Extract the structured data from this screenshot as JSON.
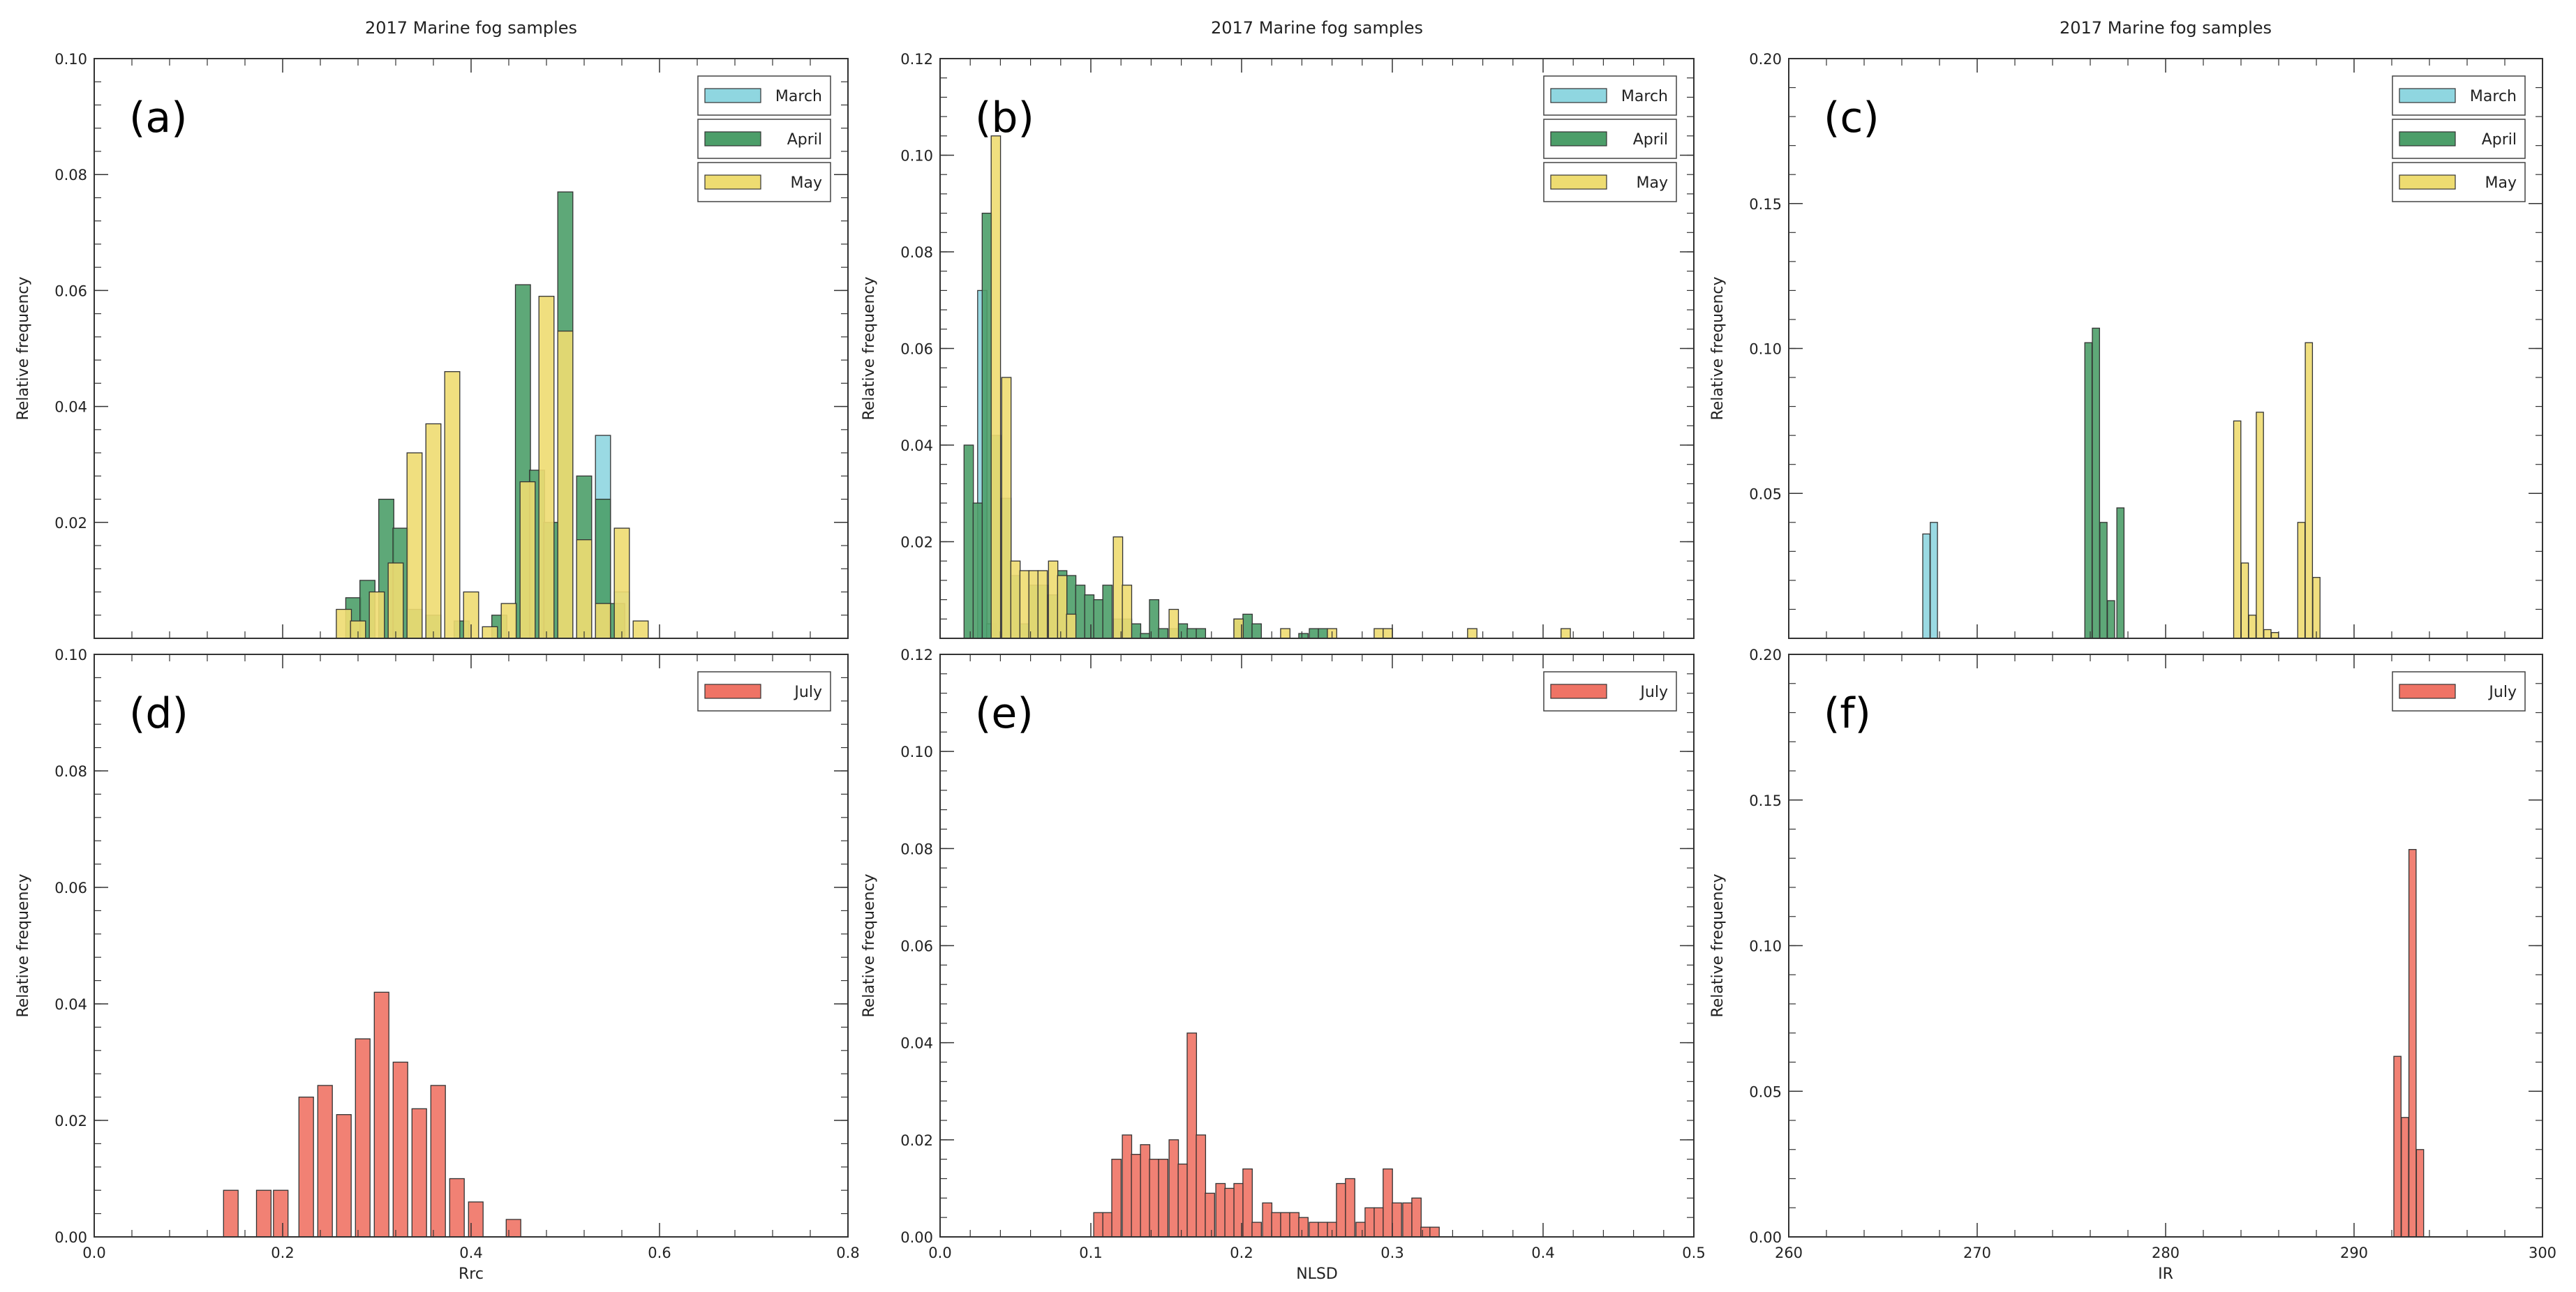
{
  "colors": {
    "March": "#8fd6e0",
    "April": "#4c9e69",
    "May": "#eedc71",
    "July": "#ef7365",
    "edge": "#333333"
  },
  "chart_data": [
    {
      "type": "bar",
      "panel": "(a)",
      "title": "2017 Marine fog samples",
      "xlabel": "",
      "ylabel": "Relative frequency",
      "xlim": [
        0,
        0.8
      ],
      "ylim": [
        0,
        0.1
      ],
      "bin_width": 0.016,
      "xticks": [],
      "yticks": [
        "0.02",
        "0.04",
        "0.06",
        "0.08",
        "0.10"
      ],
      "legend": [
        "March",
        "April",
        "May"
      ],
      "series": [
        {
          "name": "March",
          "x": [
            0.54,
            0.56
          ],
          "values": [
            0.035,
            0.008
          ]
        },
        {
          "name": "April",
          "x": [
            0.275,
            0.29,
            0.31,
            0.325,
            0.34,
            0.36,
            0.39,
            0.43,
            0.455,
            0.47,
            0.485,
            0.5,
            0.52,
            0.54,
            0.555
          ],
          "values": [
            0.007,
            0.01,
            0.024,
            0.019,
            0.005,
            0.004,
            0.003,
            0.004,
            0.061,
            0.029,
            0.02,
            0.077,
            0.028,
            0.024,
            0.006
          ]
        },
        {
          "name": "May",
          "x": [
            0.265,
            0.28,
            0.3,
            0.32,
            0.34,
            0.36,
            0.38,
            0.4,
            0.42,
            0.44,
            0.46,
            0.48,
            0.5,
            0.52,
            0.54,
            0.56,
            0.58,
            0.6
          ],
          "values": [
            0.005,
            0.003,
            0.008,
            0.013,
            0.032,
            0.037,
            0.046,
            0.008,
            0.002,
            0.006,
            0.027,
            0.059,
            0.053,
            0.017,
            0.006,
            0.019,
            0.003,
            0
          ]
        }
      ]
    },
    {
      "type": "bar",
      "panel": "(b)",
      "title": "2017 Marine fog samples",
      "xlabel": "",
      "ylabel": "Relative frequency",
      "xlim": [
        0,
        0.5
      ],
      "ylim": [
        0,
        0.12
      ],
      "bin_width": 0.0062,
      "xticks": [],
      "yticks": [
        "0.02",
        "0.04",
        "0.06",
        "0.08",
        "0.10",
        "0.12"
      ],
      "legend": [
        "March",
        "April",
        "May"
      ],
      "series": [
        {
          "name": "March",
          "x": [
            0.028,
            0.034
          ],
          "values": [
            0.072,
            0.003
          ]
        },
        {
          "name": "April",
          "x": [
            0.019,
            0.025,
            0.031,
            0.037,
            0.044,
            0.05,
            0.056,
            0.062,
            0.068,
            0.075,
            0.081,
            0.087,
            0.093,
            0.099,
            0.105,
            0.111,
            0.118,
            0.124,
            0.13,
            0.136,
            0.142,
            0.148,
            0.155,
            0.161,
            0.167,
            0.173,
            0.198,
            0.204,
            0.21,
            0.241,
            0.248,
            0.254
          ],
          "values": [
            0.04,
            0.028,
            0.088,
            0.042,
            0.029,
            0.013,
            0.003,
            0.011,
            0.011,
            0.009,
            0.014,
            0.013,
            0.011,
            0.009,
            0.008,
            0.011,
            0.004,
            0.004,
            0.003,
            0.001,
            0.008,
            0.002,
            0.002,
            0.003,
            0.002,
            0.002,
            0.004,
            0.005,
            0.003,
            0.001,
            0.002,
            0.002
          ]
        },
        {
          "name": "May",
          "x": [
            0.037,
            0.044,
            0.05,
            0.056,
            0.062,
            0.068,
            0.075,
            0.081,
            0.087,
            0.118,
            0.124,
            0.155,
            0.198,
            0.229,
            0.26,
            0.291,
            0.297,
            0.353,
            0.415
          ],
          "values": [
            0.104,
            0.054,
            0.016,
            0.014,
            0.014,
            0.014,
            0.016,
            0.013,
            0.005,
            0.021,
            0.011,
            0.006,
            0.004,
            0.002,
            0.002,
            0.002,
            0.002,
            0.002,
            0.002
          ]
        }
      ]
    },
    {
      "type": "bar",
      "panel": "(c)",
      "title": "2017 Marine fog samples",
      "xlabel": "",
      "ylabel": "Relative frequency",
      "xlim": [
        260,
        300
      ],
      "ylim": [
        0,
        0.2
      ],
      "bin_width": 0.38,
      "xticks": [],
      "yticks": [
        "0.05",
        "0.10",
        "0.15",
        "0.20"
      ],
      "legend": [
        "March",
        "April",
        "May"
      ],
      "series": [
        {
          "name": "March",
          "x": [
            267.3,
            267.7
          ],
          "values": [
            0.036,
            0.04
          ]
        },
        {
          "name": "April",
          "x": [
            275.9,
            276.3,
            276.7,
            277.1,
            277.6
          ],
          "values": [
            0.102,
            0.107,
            0.04,
            0.013,
            0.045
          ]
        },
        {
          "name": "May",
          "x": [
            283.8,
            284.2,
            284.6,
            285.0,
            285.4,
            285.8,
            287.2,
            287.6,
            288.0
          ],
          "values": [
            0.075,
            0.026,
            0.008,
            0.078,
            0.003,
            0.002,
            0.04,
            0.102,
            0.021
          ]
        }
      ]
    },
    {
      "type": "bar",
      "panel": "(d)",
      "title": "",
      "xlabel": "Rrc",
      "ylabel": "Relative frequency",
      "xlim": [
        0,
        0.8
      ],
      "ylim": [
        0,
        0.1
      ],
      "bin_width": 0.0155,
      "xticks": [
        "0.0",
        "0.2",
        "0.4",
        "0.6",
        "0.8"
      ],
      "yticks": [
        "0.00",
        "0.02",
        "0.04",
        "0.06",
        "0.08",
        "0.10"
      ],
      "legend": [
        "July"
      ],
      "series": [
        {
          "name": "July",
          "x": [
            0.145,
            0.18,
            0.198,
            0.225,
            0.245,
            0.265,
            0.285,
            0.305,
            0.325,
            0.345,
            0.365,
            0.385,
            0.405,
            0.445
          ],
          "values": [
            0.008,
            0.008,
            0.008,
            0.024,
            0.026,
            0.021,
            0.034,
            0.042,
            0.03,
            0.022,
            0.026,
            0.01,
            0.006,
            0.003
          ]
        }
      ]
    },
    {
      "type": "bar",
      "panel": "(e)",
      "title": "",
      "xlabel": "NLSD",
      "ylabel": "Relative frequency",
      "xlim": [
        0,
        0.5
      ],
      "ylim": [
        0,
        0.12
      ],
      "bin_width": 0.0062,
      "xticks": [
        "0.0",
        "0.1",
        "0.2",
        "0.3",
        "0.4",
        "0.5"
      ],
      "yticks": [
        "0.00",
        "0.02",
        "0.04",
        "0.06",
        "0.08",
        "0.10",
        "0.12"
      ],
      "legend": [
        "July"
      ],
      "series": [
        {
          "name": "July",
          "x": [
            0.105,
            0.111,
            0.117,
            0.124,
            0.13,
            0.136,
            0.142,
            0.148,
            0.155,
            0.161,
            0.167,
            0.173,
            0.179,
            0.186,
            0.192,
            0.198,
            0.204,
            0.21,
            0.217,
            0.223,
            0.229,
            0.235,
            0.241,
            0.248,
            0.254,
            0.26,
            0.266,
            0.272,
            0.279,
            0.285,
            0.291,
            0.297,
            0.303,
            0.31,
            0.316,
            0.322,
            0.328,
            0.334
          ],
          "values": [
            0.005,
            0.005,
            0.016,
            0.021,
            0.017,
            0.019,
            0.016,
            0.016,
            0.02,
            0.015,
            0.042,
            0.021,
            0.009,
            0.011,
            0.01,
            0.011,
            0.014,
            0.003,
            0.007,
            0.005,
            0.005,
            0.005,
            0.004,
            0.003,
            0.003,
            0.003,
            0.011,
            0.012,
            0.003,
            0.006,
            0.006,
            0.014,
            0.007,
            0.007,
            0.008,
            0.002,
            0.002,
            0
          ]
        }
      ]
    },
    {
      "type": "bar",
      "panel": "(f)",
      "title": "",
      "xlabel": "IR",
      "ylabel": "Relative frequency",
      "xlim": [
        260,
        300
      ],
      "ylim": [
        0,
        0.2
      ],
      "bin_width": 0.38,
      "xticks": [
        "260",
        "270",
        "280",
        "290",
        "300"
      ],
      "yticks": [
        "0.00",
        "0.05",
        "0.10",
        "0.15",
        "0.20"
      ],
      "legend": [
        "July"
      ],
      "series": [
        {
          "name": "July",
          "x": [
            292.3,
            292.7,
            293.1,
            293.5
          ],
          "values": [
            0.062,
            0.041,
            0.133,
            0.03
          ]
        }
      ]
    }
  ]
}
